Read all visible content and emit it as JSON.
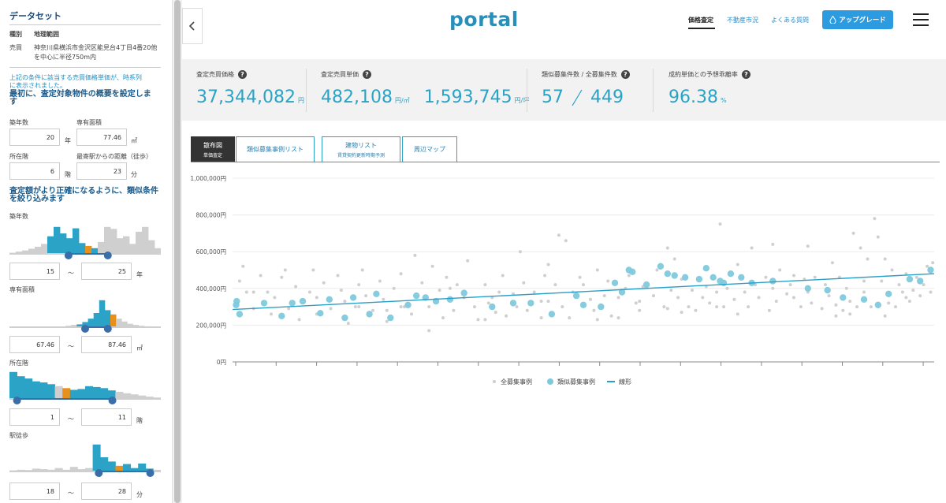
{
  "sidebar": {
    "title": "データセット",
    "kind_label": "種別",
    "kind_value": "地理範囲",
    "sale_label": "売買",
    "sale_value_1": "神奈川県横浜市金沢区能見台4丁目4番20他",
    "sale_value_2": "を中心に半径750m内",
    "note_1": "上記の条件に該当する売買価格単価が、時系列",
    "note_2": "に表示されました。",
    "section1_1": "最初に、査定対象物件の概要を設定しま",
    "section1_2": "す",
    "age_label": "築年数",
    "age_value": "20",
    "age_unit": "年",
    "area_label": "専有面積",
    "area_value": "77.46",
    "area_unit": "㎡",
    "floor_label": "所在階",
    "floor_value": "6",
    "floor_unit": "階",
    "station_label": "最寄駅からの距離（徒歩）",
    "station_value": "23",
    "station_unit": "分",
    "section2_1": "査定額がより正確になるように、類似条件",
    "section2_2": "を絞り込みます",
    "filters": [
      {
        "label": "築年数",
        "min": "15",
        "max": "25",
        "unit": "年",
        "handles": [
          0.39,
          0.65
        ],
        "bars": [
          0.04,
          0.08,
          0.12,
          0.18,
          0.25,
          0.35,
          0.62,
          0.95,
          0.72,
          0.55,
          0.9,
          0.38,
          0.28,
          0.2,
          0.42,
          0.95,
          0.88,
          0.55,
          0.62,
          0.35,
          0.78,
          0.95,
          0.48,
          0.2
        ],
        "hi": [
          6,
          7,
          8,
          9,
          10,
          11,
          13
        ],
        "mark": 12
      },
      {
        "label": "専有面積",
        "min": "67.46",
        "max": "87.46",
        "unit": "㎡",
        "handles": [
          0.5,
          0.65
        ],
        "bars": [
          0,
          0,
          0,
          0,
          0,
          0,
          0,
          0,
          0.02,
          0.02,
          0.05,
          0.08,
          0.1,
          0.18,
          0.3,
          0.5,
          0.95,
          0.6,
          0.45,
          0.3,
          0.2,
          0.12,
          0.08,
          0.05,
          0.03,
          0.02,
          0.01
        ],
        "hi": [
          12,
          13,
          14,
          15,
          16,
          17
        ],
        "mark": 18
      },
      {
        "label": "所在階",
        "min": "1",
        "max": "11",
        "unit": "階",
        "handles": [
          0.05,
          0.68
        ],
        "bars": [
          0.95,
          0.8,
          0.72,
          0.62,
          0.58,
          0.52,
          0.45,
          0.38,
          0.32,
          0.35,
          0.45,
          0.42,
          0.38,
          0.3,
          0.25,
          0.2,
          0.16,
          0.12,
          0.08,
          0.05
        ],
        "hi": [
          0,
          1,
          2,
          3,
          4,
          5,
          8,
          9,
          10,
          11,
          12,
          13
        ],
        "mark": 7
      },
      {
        "label": "駅徒歩",
        "min": "18",
        "max": "28",
        "unit": "分",
        "handles": [
          0.59,
          0.93
        ],
        "bars": [
          0.04,
          0.06,
          0.05,
          0.1,
          0.08,
          0.06,
          0.12,
          0.06,
          0.16,
          0.08,
          0.12,
          0.95,
          0.5,
          0.35,
          0.2,
          0.26,
          0.12,
          0.28,
          0.1,
          0.06
        ],
        "hi": [
          11,
          12,
          13,
          14,
          15,
          16,
          17,
          18
        ],
        "mark": 14
      }
    ]
  },
  "header": {
    "logo": "portal",
    "nav": [
      "価格査定",
      "不動産市況",
      "よくある質問"
    ],
    "upgrade": "アップグレード"
  },
  "stats": [
    {
      "label": "査定売買価格",
      "value": "37,344,082",
      "unit": "円"
    },
    {
      "label": "査定売買単価",
      "value": "482,108",
      "unit": "円/㎡",
      "value2": "1,593,745",
      "unit2": "円/坪"
    },
    {
      "label": "類似募集件数 / 全募集件数",
      "value": "57",
      "value2": "449"
    },
    {
      "label": "成約単価との予想乖離率",
      "value": "96.38",
      "unit": "%"
    }
  ],
  "tabs": [
    {
      "label": "散布図",
      "sub": "単価査定"
    },
    {
      "label": "類似募集事例リスト"
    },
    {
      "label": "建物リスト",
      "sub": "賃貸契約更新時期予測"
    },
    {
      "label": "周辺マップ"
    }
  ],
  "colors": {
    "accent": "#2aa3c6",
    "similar": "#7ec9dc",
    "all": "#cfcfcf",
    "line": "#2a9fc9"
  },
  "chart_data": {
    "type": "scatter",
    "y_ticks": [
      "1,000,000円",
      "800,000円",
      "600,000円",
      "400,000円",
      "200,000円",
      "0円"
    ],
    "ylim": [
      0,
      1000000
    ],
    "xlim": [
      0,
      1
    ],
    "legend": [
      "全募集事例",
      "類似募集事例",
      "線形"
    ],
    "trend": {
      "x": [
        0,
        1
      ],
      "y": [
        285000,
        480000
      ]
    },
    "similar": [
      [
        0.005,
        310000
      ],
      [
        0.006,
        330000
      ],
      [
        0.01,
        260000
      ],
      [
        0.045,
        320000
      ],
      [
        0.07,
        250000
      ],
      [
        0.085,
        320000
      ],
      [
        0.1,
        330000
      ],
      [
        0.125,
        265000
      ],
      [
        0.138,
        340000
      ],
      [
        0.16,
        240000
      ],
      [
        0.172,
        350000
      ],
      [
        0.195,
        260000
      ],
      [
        0.205,
        370000
      ],
      [
        0.225,
        240000
      ],
      [
        0.25,
        310000
      ],
      [
        0.262,
        360000
      ],
      [
        0.275,
        350000
      ],
      [
        0.29,
        330000
      ],
      [
        0.31,
        340000
      ],
      [
        0.33,
        375000
      ],
      [
        0.37,
        300000
      ],
      [
        0.4,
        320000
      ],
      [
        0.425,
        320000
      ],
      [
        0.455,
        260000
      ],
      [
        0.49,
        360000
      ],
      [
        0.5,
        310000
      ],
      [
        0.525,
        300000
      ],
      [
        0.545,
        430000
      ],
      [
        0.555,
        380000
      ],
      [
        0.565,
        500000
      ],
      [
        0.57,
        490000
      ],
      [
        0.59,
        420000
      ],
      [
        0.61,
        520000
      ],
      [
        0.62,
        480000
      ],
      [
        0.63,
        470000
      ],
      [
        0.645,
        460000
      ],
      [
        0.665,
        450000
      ],
      [
        0.675,
        510000
      ],
      [
        0.685,
        460000
      ],
      [
        0.695,
        440000
      ],
      [
        0.7,
        430000
      ],
      [
        0.71,
        480000
      ],
      [
        0.725,
        460000
      ],
      [
        0.74,
        430000
      ],
      [
        0.77,
        440000
      ],
      [
        0.82,
        400000
      ],
      [
        0.848,
        390000
      ],
      [
        0.87,
        350000
      ],
      [
        0.9,
        340000
      ],
      [
        0.92,
        310000
      ],
      [
        0.935,
        370000
      ],
      [
        0.965,
        450000
      ],
      [
        0.98,
        440000
      ],
      [
        0.995,
        500000
      ]
    ],
    "all": [
      [
        0.01,
        440000
      ],
      [
        0.015,
        520000
      ],
      [
        0.02,
        380000
      ],
      [
        0.03,
        290000
      ],
      [
        0.04,
        470000
      ],
      [
        0.05,
        380000
      ],
      [
        0.055,
        260000
      ],
      [
        0.06,
        350000
      ],
      [
        0.075,
        500000
      ],
      [
        0.08,
        290000
      ],
      [
        0.09,
        410000
      ],
      [
        0.095,
        230000
      ],
      [
        0.11,
        380000
      ],
      [
        0.115,
        500000
      ],
      [
        0.12,
        260000
      ],
      [
        0.13,
        430000
      ],
      [
        0.14,
        290000
      ],
      [
        0.15,
        470000
      ],
      [
        0.155,
        390000
      ],
      [
        0.165,
        210000
      ],
      [
        0.175,
        300000
      ],
      [
        0.18,
        420000
      ],
      [
        0.185,
        500000
      ],
      [
        0.19,
        360000
      ],
      [
        0.2,
        280000
      ],
      [
        0.21,
        440000
      ],
      [
        0.215,
        340000
      ],
      [
        0.22,
        220000
      ],
      [
        0.23,
        400000
      ],
      [
        0.24,
        480000
      ],
      [
        0.245,
        300000
      ],
      [
        0.255,
        260000
      ],
      [
        0.26,
        580000
      ],
      [
        0.27,
        430000
      ],
      [
        0.28,
        300000
      ],
      [
        0.285,
        520000
      ],
      [
        0.295,
        390000
      ],
      [
        0.3,
        240000
      ],
      [
        0.305,
        460000
      ],
      [
        0.315,
        280000
      ],
      [
        0.32,
        420000
      ],
      [
        0.33,
        350000
      ],
      [
        0.335,
        550000
      ],
      [
        0.345,
        300000
      ],
      [
        0.35,
        230000
      ],
      [
        0.36,
        420000
      ],
      [
        0.365,
        320000
      ],
      [
        0.375,
        270000
      ],
      [
        0.38,
        380000
      ],
      [
        0.385,
        470000
      ],
      [
        0.39,
        250000
      ],
      [
        0.4,
        370000
      ],
      [
        0.405,
        300000
      ],
      [
        0.41,
        600000
      ],
      [
        0.415,
        430000
      ],
      [
        0.42,
        280000
      ],
      [
        0.43,
        380000
      ],
      [
        0.44,
        240000
      ],
      [
        0.445,
        470000
      ],
      [
        0.45,
        330000
      ],
      [
        0.46,
        420000
      ],
      [
        0.465,
        690000
      ],
      [
        0.47,
        300000
      ],
      [
        0.475,
        660000
      ],
      [
        0.48,
        240000
      ],
      [
        0.485,
        380000
      ],
      [
        0.495,
        460000
      ],
      [
        0.5,
        420000
      ],
      [
        0.51,
        340000
      ],
      [
        0.515,
        280000
      ],
      [
        0.52,
        500000
      ],
      [
        0.53,
        360000
      ],
      [
        0.535,
        440000
      ],
      [
        0.54,
        250000
      ],
      [
        0.55,
        350000
      ],
      [
        0.56,
        400000
      ],
      [
        0.565,
        470000
      ],
      [
        0.575,
        320000
      ],
      [
        0.58,
        280000
      ],
      [
        0.585,
        410000
      ],
      [
        0.6,
        360000
      ],
      [
        0.605,
        500000
      ],
      [
        0.615,
        300000
      ],
      [
        0.62,
        620000
      ],
      [
        0.625,
        390000
      ],
      [
        0.635,
        350000
      ],
      [
        0.64,
        450000
      ],
      [
        0.65,
        300000
      ],
      [
        0.655,
        390000
      ],
      [
        0.66,
        280000
      ],
      [
        0.67,
        350000
      ],
      [
        0.675,
        410000
      ],
      [
        0.68,
        320000
      ],
      [
        0.69,
        380000
      ],
      [
        0.695,
        750000
      ],
      [
        0.7,
        300000
      ],
      [
        0.705,
        400000
      ],
      [
        0.715,
        340000
      ],
      [
        0.72,
        530000
      ],
      [
        0.73,
        380000
      ],
      [
        0.735,
        300000
      ],
      [
        0.745,
        420000
      ],
      [
        0.75,
        350000
      ],
      [
        0.76,
        460000
      ],
      [
        0.765,
        280000
      ],
      [
        0.77,
        400000
      ],
      [
        0.775,
        330000
      ],
      [
        0.78,
        500000
      ],
      [
        0.79,
        370000
      ],
      [
        0.795,
        420000
      ],
      [
        0.8,
        350000
      ],
      [
        0.81,
        300000
      ],
      [
        0.815,
        450000
      ],
      [
        0.82,
        380000
      ],
      [
        0.825,
        320000
      ],
      [
        0.83,
        460000
      ],
      [
        0.84,
        290000
      ],
      [
        0.845,
        420000
      ],
      [
        0.85,
        360000
      ],
      [
        0.855,
        540000
      ],
      [
        0.86,
        310000
      ],
      [
        0.865,
        460000
      ],
      [
        0.87,
        280000
      ],
      [
        0.875,
        400000
      ],
      [
        0.88,
        330000
      ],
      [
        0.885,
        700000
      ],
      [
        0.89,
        300000
      ],
      [
        0.895,
        620000
      ],
      [
        0.9,
        380000
      ],
      [
        0.905,
        560000
      ],
      [
        0.91,
        300000
      ],
      [
        0.915,
        780000
      ],
      [
        0.92,
        680000
      ],
      [
        0.925,
        440000
      ],
      [
        0.93,
        560000
      ],
      [
        0.935,
        320000
      ],
      [
        0.94,
        500000
      ],
      [
        0.945,
        300000
      ],
      [
        0.95,
        420000
      ],
      [
        0.955,
        380000
      ],
      [
        0.96,
        480000
      ],
      [
        0.965,
        330000
      ],
      [
        0.97,
        390000
      ],
      [
        0.975,
        460000
      ],
      [
        0.98,
        360000
      ],
      [
        0.985,
        420000
      ],
      [
        0.99,
        520000
      ],
      [
        0.995,
        380000
      ],
      [
        0.998,
        540000
      ],
      [
        0.24,
        300000
      ],
      [
        0.36,
        230000
      ],
      [
        0.28,
        170000
      ],
      [
        0.55,
        240000
      ],
      [
        0.62,
        290000
      ],
      [
        0.72,
        260000
      ],
      [
        0.77,
        640000
      ],
      [
        0.52,
        230000
      ],
      [
        0.44,
        330000
      ],
      [
        0.69,
        300000
      ],
      [
        0.82,
        630000
      ],
      [
        0.88,
        260000
      ],
      [
        0.93,
        250000
      ],
      [
        0.86,
        250000
      ],
      [
        0.64,
        270000
      ],
      [
        0.58,
        330000
      ],
      [
        0.31,
        400000
      ],
      [
        0.18,
        300000
      ],
      [
        0.12,
        350000
      ],
      [
        0.07,
        460000
      ],
      [
        0.03,
        380000
      ],
      [
        0.45,
        530000
      ],
      [
        0.63,
        560000
      ],
      [
        0.74,
        620000
      ],
      [
        0.8,
        470000
      ],
      [
        0.9,
        440000
      ],
      [
        0.96,
        350000
      ],
      [
        0.37,
        350000
      ],
      [
        0.16,
        330000
      ],
      [
        0.22,
        280000
      ]
    ]
  }
}
